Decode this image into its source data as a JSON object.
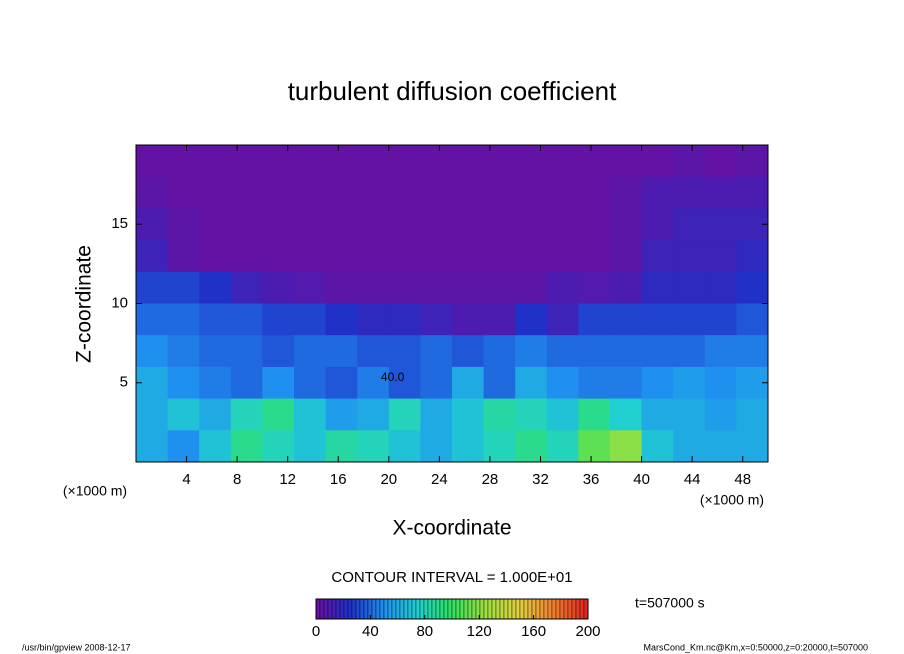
{
  "chart_data": {
    "type": "contour",
    "title": "turbulent diffusion coefficient",
    "xlabel": "X-coordinate",
    "ylabel": "Z-coordinate",
    "x_unit": "(×1000 m)",
    "y_unit": "(×1000 m)",
    "xlim": [
      0,
      50
    ],
    "ylim": [
      0,
      20
    ],
    "xticks": [
      4,
      8,
      12,
      16,
      20,
      24,
      28,
      32,
      36,
      40,
      44,
      48
    ],
    "yticks": [
      5,
      10,
      15
    ],
    "field": {
      "x": [
        1.25,
        3.75,
        6.25,
        8.75,
        11.25,
        13.75,
        16.25,
        18.75,
        21.25,
        23.75,
        26.25,
        28.75,
        31.25,
        33.75,
        36.25,
        38.75,
        41.25,
        43.75,
        46.25,
        48.75
      ],
      "z": [
        19,
        17,
        15,
        13,
        11,
        9,
        7,
        5,
        3,
        1
      ],
      "values": [
        [
          2,
          2,
          2,
          2,
          2,
          2,
          2,
          2,
          2,
          2,
          2,
          2,
          2,
          2,
          2,
          2,
          2,
          5,
          2,
          5
        ],
        [
          5,
          2,
          2,
          2,
          2,
          2,
          2,
          2,
          2,
          2,
          2,
          2,
          2,
          2,
          2,
          5,
          10,
          10,
          10,
          10
        ],
        [
          10,
          5,
          2,
          2,
          2,
          2,
          2,
          2,
          2,
          2,
          2,
          2,
          2,
          2,
          2,
          5,
          10,
          15,
          15,
          15
        ],
        [
          15,
          5,
          2,
          2,
          2,
          2,
          2,
          2,
          2,
          2,
          2,
          2,
          2,
          2,
          2,
          5,
          15,
          15,
          15,
          20
        ],
        [
          30,
          30,
          25,
          15,
          10,
          8,
          5,
          5,
          5,
          5,
          5,
          5,
          5,
          10,
          8,
          10,
          20,
          20,
          20,
          25
        ],
        [
          40,
          40,
          35,
          35,
          30,
          30,
          25,
          20,
          20,
          15,
          10,
          10,
          25,
          15,
          30,
          30,
          30,
          30,
          30,
          35
        ],
        [
          50,
          45,
          40,
          40,
          35,
          40,
          40,
          35,
          35,
          40,
          35,
          40,
          45,
          40,
          40,
          40,
          40,
          40,
          45,
          45
        ],
        [
          60,
          50,
          45,
          40,
          50,
          40,
          35,
          45,
          35,
          40,
          60,
          40,
          60,
          50,
          45,
          45,
          50,
          55,
          50,
          55
        ],
        [
          60,
          70,
          60,
          80,
          90,
          70,
          55,
          60,
          80,
          60,
          70,
          85,
          80,
          70,
          90,
          75,
          60,
          60,
          55,
          60
        ],
        [
          60,
          50,
          70,
          90,
          80,
          70,
          85,
          80,
          70,
          60,
          70,
          80,
          90,
          80,
          110,
          120,
          70,
          60,
          60,
          60
        ]
      ]
    },
    "contour_labels": [
      {
        "x": 20.3,
        "z": 5.3,
        "label": "40.0"
      }
    ],
    "contour_interval": "CONTOUR INTERVAL = 1.000E+01",
    "colorbar": {
      "lim": [
        0,
        200
      ],
      "ticks": [
        0,
        40,
        80,
        120,
        160,
        200
      ],
      "colors": [
        "#6a0fa0",
        "#2030c8",
        "#2090f0",
        "#20d0d0",
        "#30e060",
        "#a0e040",
        "#e0d040",
        "#f08030",
        "#e02020"
      ]
    },
    "time_label": "t=507000 s",
    "footer_left": "/usr/bin/gpview  2008-12-17",
    "footer_right": "MarsCond_Km.nc@Km,x=0:50000,z=0:20000,t=507000"
  }
}
